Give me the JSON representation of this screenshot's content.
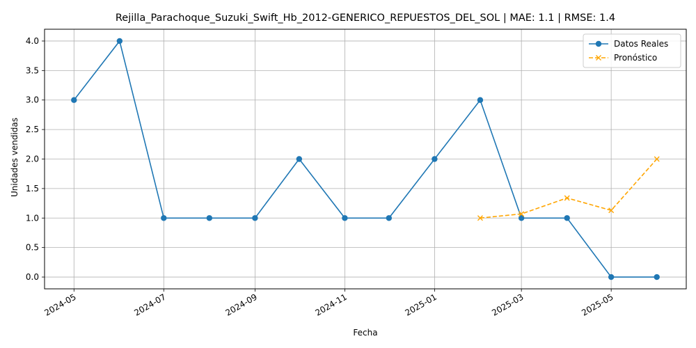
{
  "chart_data": {
    "type": "line",
    "title": "Rejilla_Parachoque_Suzuki_Swift_Hb_2012-GENERICO_REPUESTOS_DEL_SOL | MAE: 1.1 | RMSE: 1.4",
    "xlabel": "Fecha",
    "ylabel": "Unidades vendidas",
    "xlim": [
      "2024-04-11",
      "2025-06-21"
    ],
    "ylim": [
      -0.2,
      4.2
    ],
    "x_ticks": [
      "2024-05-01",
      "2024-07-01",
      "2024-09-01",
      "2024-11-01",
      "2025-01-01",
      "2025-03-01",
      "2025-05-01"
    ],
    "x_tick_labels": [
      "2024-05",
      "2024-07",
      "2024-09",
      "2024-11",
      "2025-01",
      "2025-03",
      "2025-05"
    ],
    "y_ticks": [
      0.0,
      0.5,
      1.0,
      1.5,
      2.0,
      2.5,
      3.0,
      3.5,
      4.0
    ],
    "y_tick_labels": [
      "0.0",
      "0.5",
      "1.0",
      "1.5",
      "2.0",
      "2.5",
      "3.0",
      "3.5",
      "4.0"
    ],
    "grid": true,
    "legend_position": "top-right",
    "series": [
      {
        "name": "Datos Reales",
        "color": "#1f77b4",
        "style": "solid",
        "marker": "circle",
        "x": [
          "2024-05-01",
          "2024-06-01",
          "2024-07-01",
          "2024-08-01",
          "2024-09-01",
          "2024-10-01",
          "2024-11-01",
          "2024-12-01",
          "2025-01-01",
          "2025-02-01",
          "2025-03-01",
          "2025-04-01",
          "2025-05-01",
          "2025-06-01"
        ],
        "values": [
          3,
          4,
          1,
          1,
          1,
          2,
          1,
          1,
          2,
          3,
          1,
          1,
          0,
          0
        ]
      },
      {
        "name": "Pronóstico",
        "color": "#ffa500",
        "style": "dashed",
        "marker": "x",
        "x": [
          "2025-02-01",
          "2025-03-01",
          "2025-04-01",
          "2025-05-01",
          "2025-06-01"
        ],
        "values": [
          1.0,
          1.07,
          1.34,
          1.13,
          2.0
        ]
      }
    ]
  }
}
